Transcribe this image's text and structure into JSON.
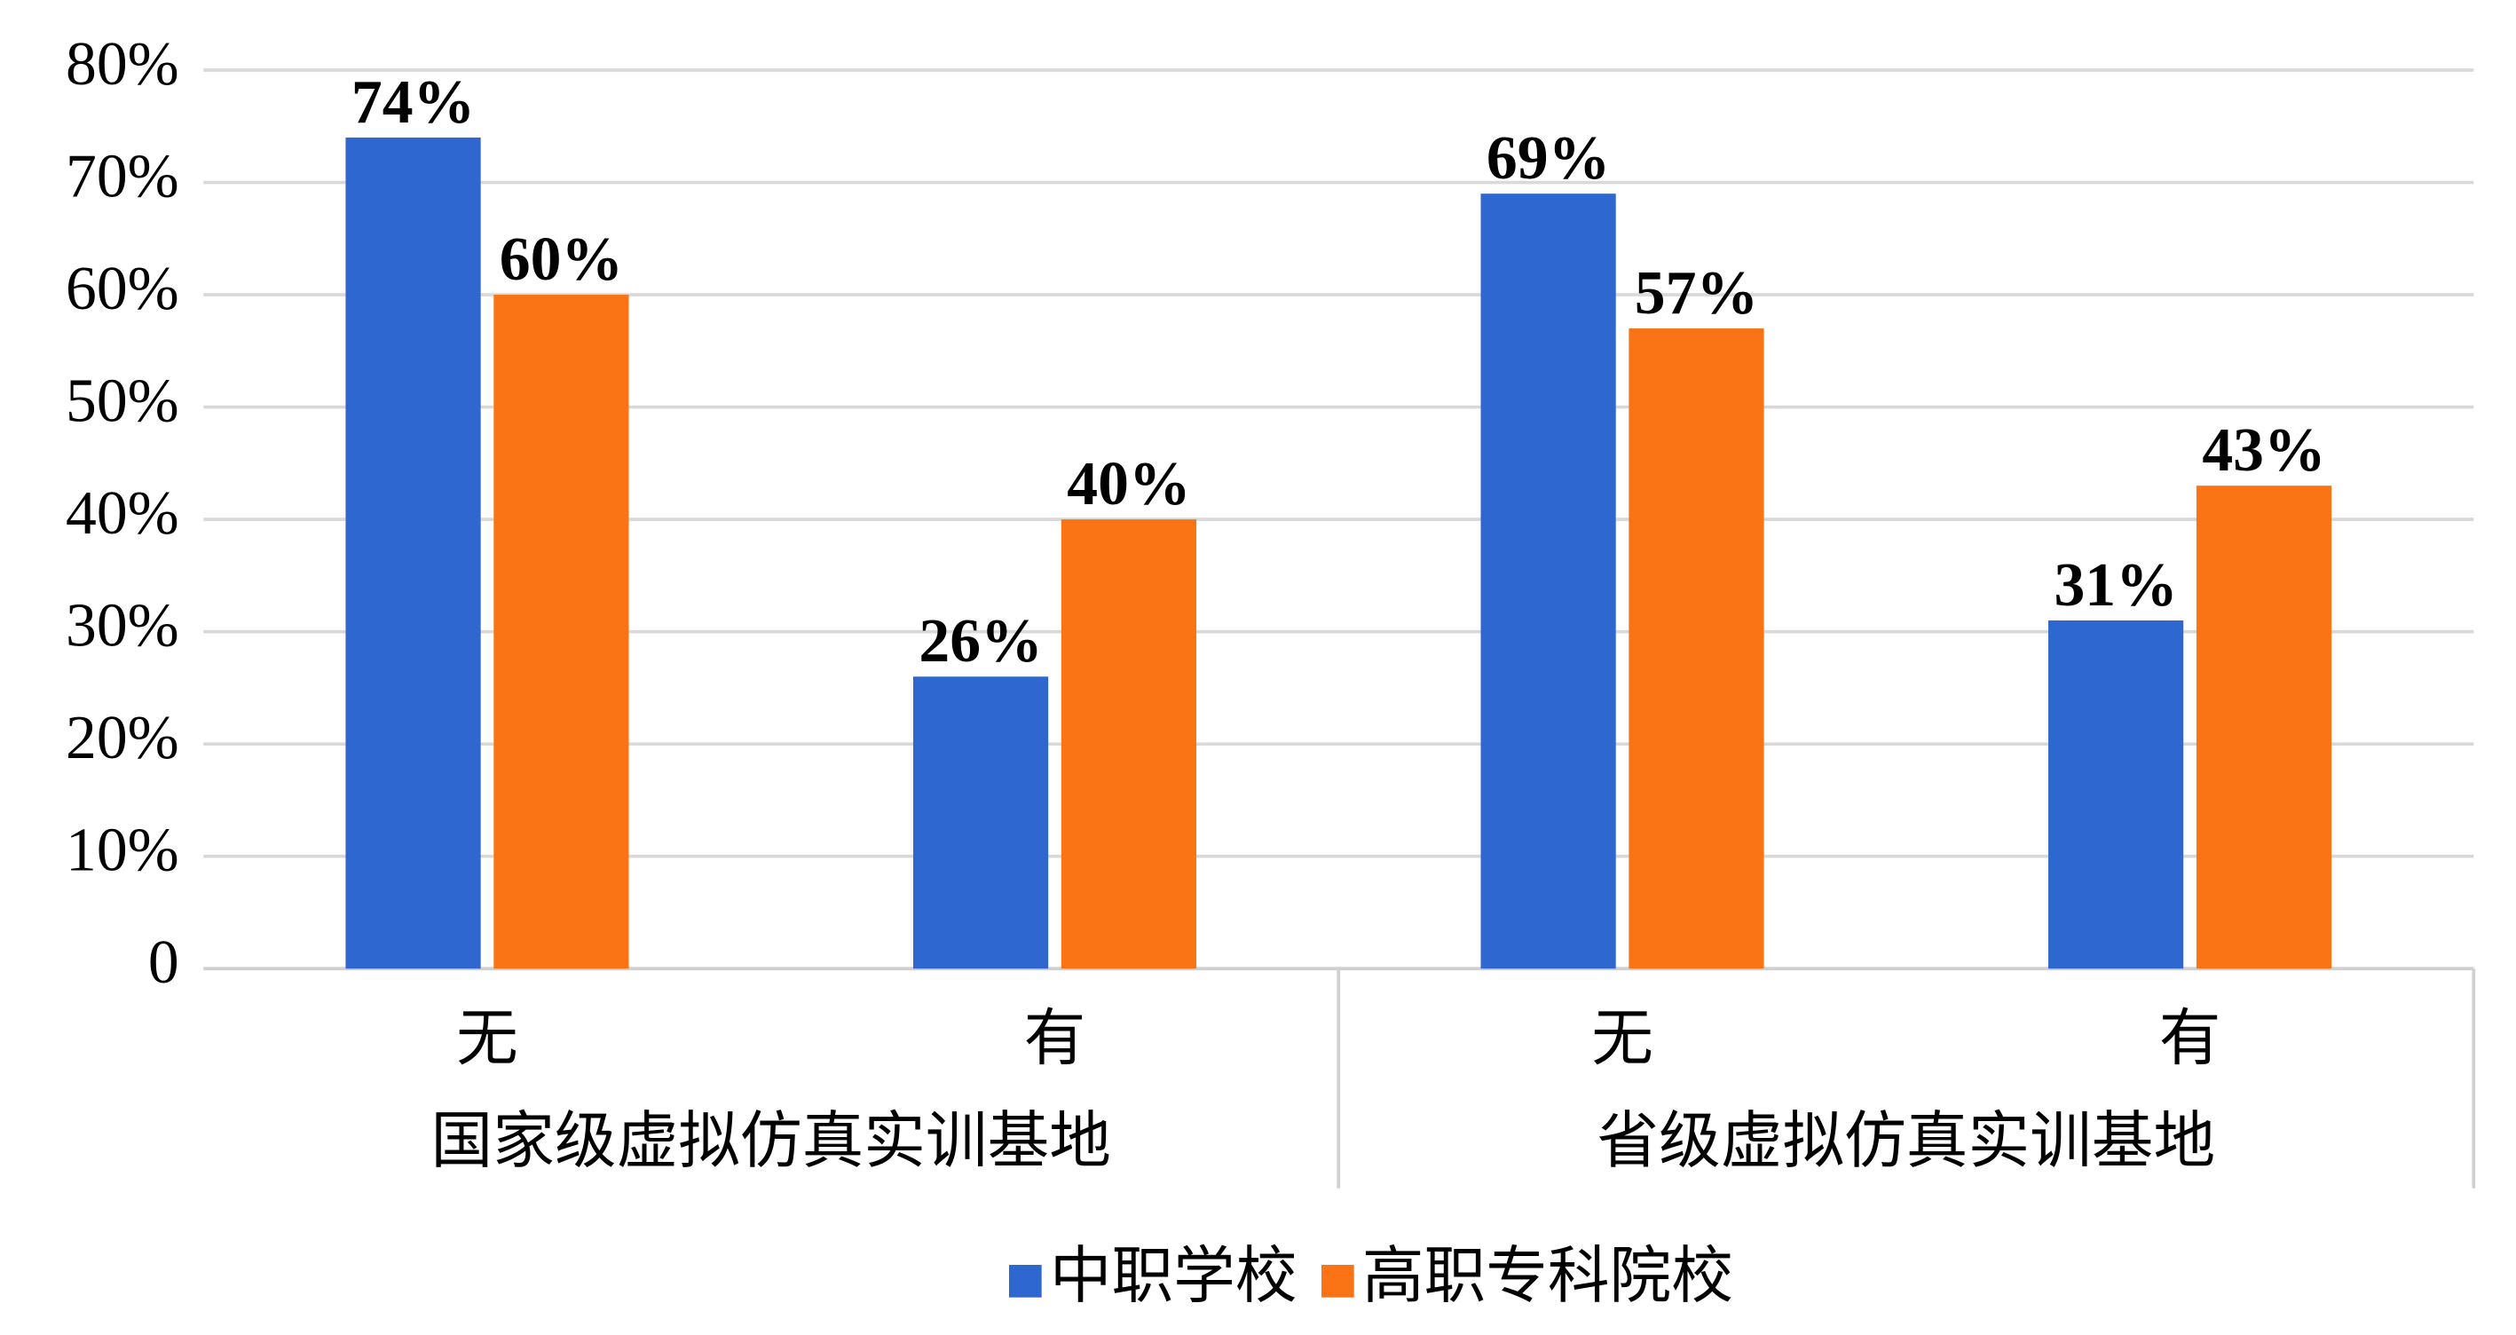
{
  "chart_data": {
    "type": "bar",
    "categories": [
      "无",
      "有",
      "无",
      "有"
    ],
    "category_groups": [
      "国家级虚拟仿真实训基地",
      "省级虚拟仿真实训基地"
    ],
    "series": [
      {
        "name": "中职学校",
        "color": "#2e67cf",
        "values": [
          74,
          26,
          69,
          31
        ],
        "value_labels": [
          "74%",
          "26%",
          "69%",
          "31%"
        ]
      },
      {
        "name": "高职专科院校",
        "color": "#fa7315",
        "values": [
          60,
          40,
          57,
          43
        ],
        "value_labels": [
          "60%",
          "40%",
          "57%",
          "43%"
        ]
      }
    ],
    "ylim": [
      0,
      80
    ],
    "yticks": [
      0,
      {
        "value": 10,
        "label": "10%"
      },
      {
        "value": 20,
        "label": "20%"
      },
      {
        "value": 30,
        "label": "30%"
      },
      {
        "value": 40,
        "label": "40%"
      },
      {
        "value": 50,
        "label": "50%"
      },
      {
        "value": 60,
        "label": "60%"
      },
      {
        "value": 70,
        "label": "70%"
      },
      {
        "value": 80,
        "label": "80%"
      }
    ],
    "grid": true,
    "legend": "bottom"
  }
}
